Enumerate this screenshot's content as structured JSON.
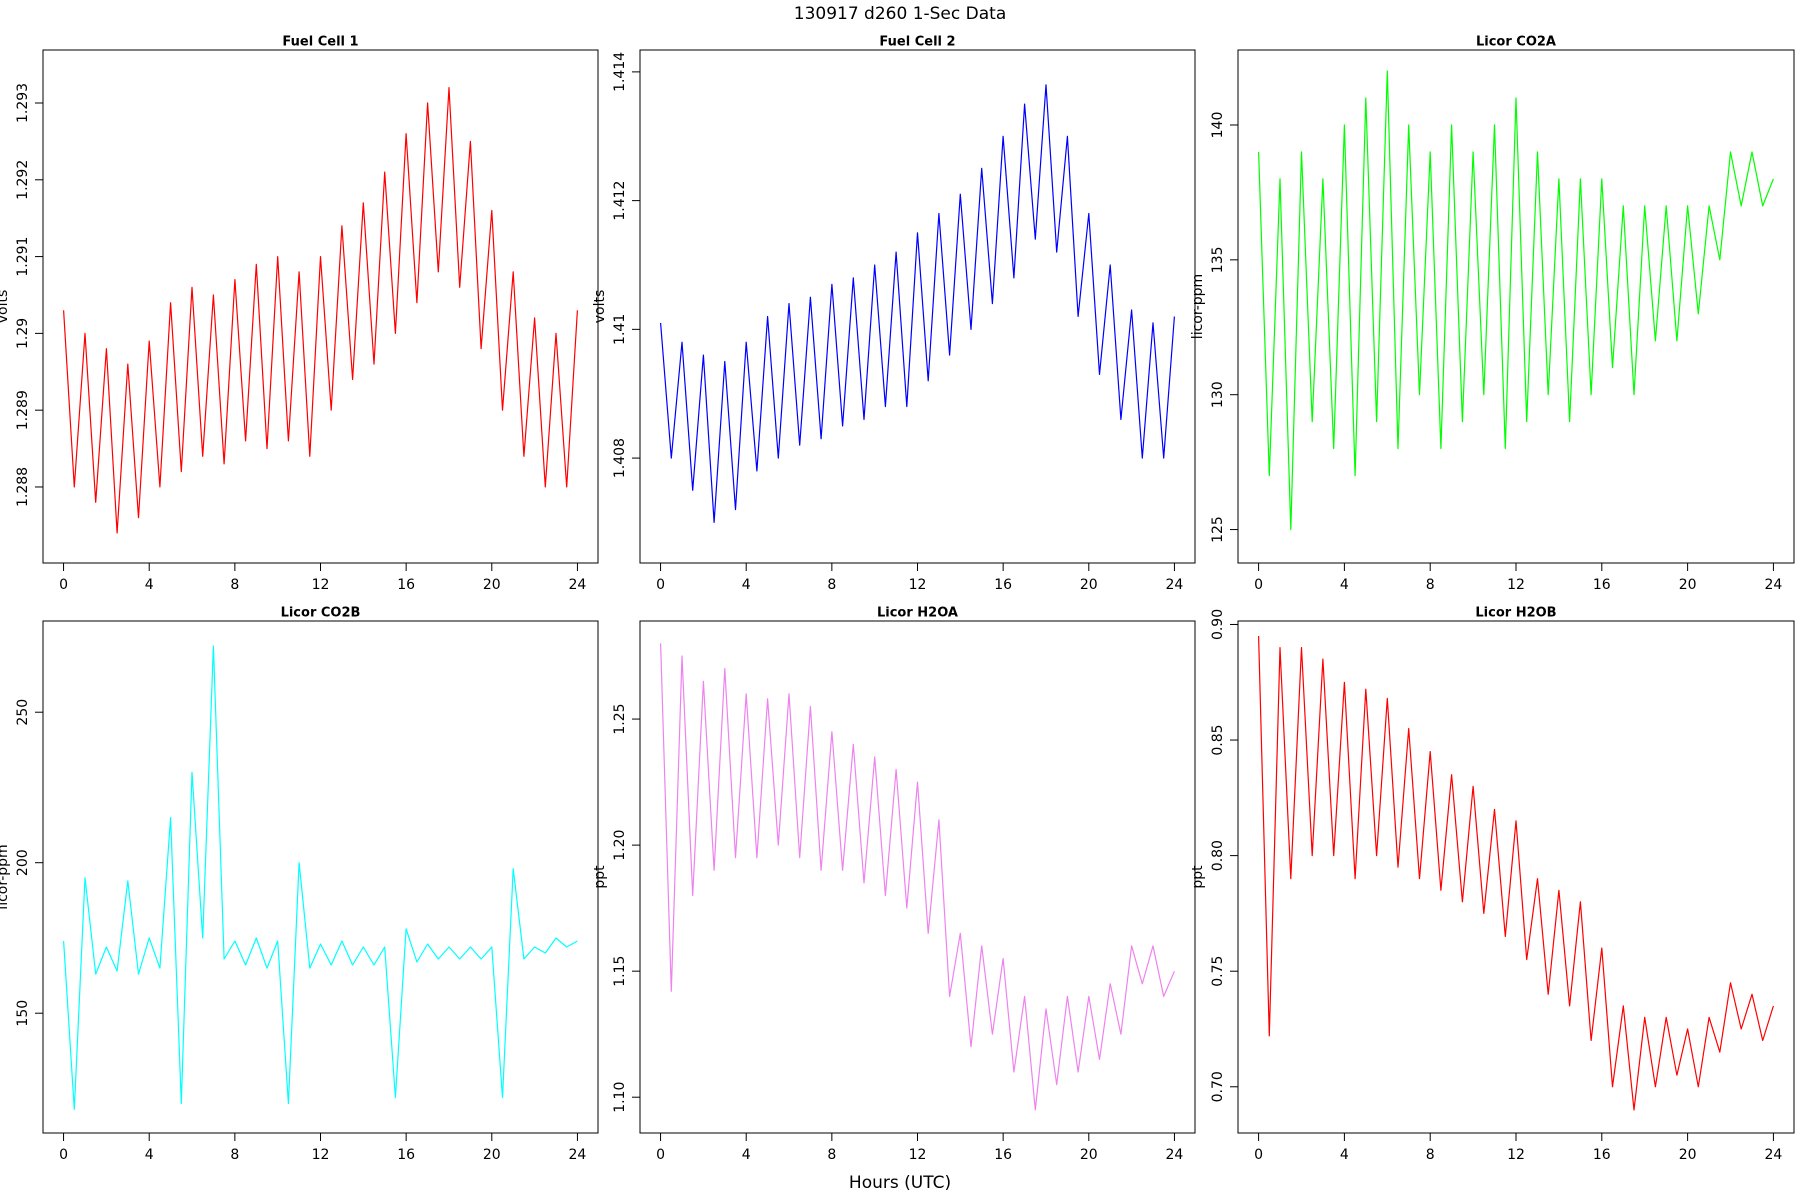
{
  "title": "130917   d260   1-Sec Data",
  "xlabel": "Hours (UTC)",
  "chart_data": [
    {
      "type": "line",
      "title": "Fuel Cell 1",
      "ylabel": "volts",
      "color": "#ff0000",
      "x": [
        0,
        0.5,
        1,
        1.5,
        2,
        2.5,
        3,
        3.5,
        4,
        4.5,
        5,
        5.5,
        6,
        6.5,
        7,
        7.5,
        8,
        8.5,
        9,
        9.5,
        10,
        10.5,
        11,
        11.5,
        12,
        12.5,
        13,
        13.5,
        14,
        14.5,
        15,
        15.5,
        16,
        16.5,
        17,
        17.5,
        18,
        18.5,
        19,
        19.5,
        20,
        20.5,
        21,
        21.5,
        22,
        22.5,
        23,
        23.5,
        24
      ],
      "values": [
        1.2903,
        1.288,
        1.29,
        1.2878,
        1.2898,
        1.2874,
        1.2896,
        1.2876,
        1.2899,
        1.288,
        1.2904,
        1.2882,
        1.2906,
        1.2884,
        1.2905,
        1.2883,
        1.2907,
        1.2886,
        1.2909,
        1.2885,
        1.291,
        1.2886,
        1.2908,
        1.2884,
        1.291,
        1.289,
        1.2914,
        1.2894,
        1.2917,
        1.2896,
        1.2921,
        1.29,
        1.2926,
        1.2904,
        1.293,
        1.2908,
        1.2932,
        1.2906,
        1.2925,
        1.2898,
        1.2916,
        1.289,
        1.2908,
        1.2884,
        1.2902,
        1.288,
        1.29,
        1.288,
        1.2903
      ],
      "xlim": [
        -0.96,
        24.96
      ],
      "xticks": [
        0,
        4,
        8,
        12,
        16,
        20,
        24
      ],
      "ylim": [
        1.28701,
        1.29369
      ],
      "yticks": [
        1.288,
        1.289,
        1.29,
        1.291,
        1.292,
        1.293
      ]
    },
    {
      "type": "line",
      "title": "Fuel Cell 2",
      "ylabel": "volts",
      "color": "#0000ff",
      "x": [
        0,
        0.5,
        1,
        1.5,
        2,
        2.5,
        3,
        3.5,
        4,
        4.5,
        5,
        5.5,
        6,
        6.5,
        7,
        7.5,
        8,
        8.5,
        9,
        9.5,
        10,
        10.5,
        11,
        11.5,
        12,
        12.5,
        13,
        13.5,
        14,
        14.5,
        15,
        15.5,
        16,
        16.5,
        17,
        17.5,
        18,
        18.5,
        19,
        19.5,
        20,
        20.5,
        21,
        21.5,
        22,
        22.5,
        23,
        23.5,
        24
      ],
      "values": [
        1.4101,
        1.408,
        1.4098,
        1.4075,
        1.4096,
        1.407,
        1.4095,
        1.4072,
        1.4098,
        1.4078,
        1.4102,
        1.408,
        1.4104,
        1.4082,
        1.4105,
        1.4083,
        1.4107,
        1.4085,
        1.4108,
        1.4086,
        1.411,
        1.4088,
        1.4112,
        1.4088,
        1.4115,
        1.4092,
        1.4118,
        1.4096,
        1.4121,
        1.41,
        1.4125,
        1.4104,
        1.413,
        1.4108,
        1.4135,
        1.4114,
        1.4138,
        1.4112,
        1.413,
        1.4102,
        1.4118,
        1.4093,
        1.411,
        1.4086,
        1.4103,
        1.408,
        1.4101,
        1.408,
        1.4102
      ],
      "xlim": [
        -0.96,
        24.96
      ],
      "xticks": [
        0,
        4,
        8,
        12,
        16,
        20,
        24
      ],
      "ylim": [
        1.40637,
        1.41434
      ],
      "yticks": [
        1.408,
        1.41,
        1.412,
        1.414
      ]
    },
    {
      "type": "line",
      "title": "Licor CO2A",
      "ylabel": "licor-ppm",
      "color": "#00ff00",
      "x": [
        0,
        0.5,
        1,
        1.5,
        2,
        2.5,
        3,
        3.5,
        4,
        4.5,
        5,
        5.5,
        6,
        6.5,
        7,
        7.5,
        8,
        8.5,
        9,
        9.5,
        10,
        10.5,
        11,
        11.5,
        12,
        12.5,
        13,
        13.5,
        14,
        14.5,
        15,
        15.5,
        16,
        16.5,
        17,
        17.5,
        18,
        18.5,
        19,
        19.5,
        20,
        20.5,
        21,
        21.5,
        22,
        22.5,
        23,
        23.5,
        24
      ],
      "values": [
        139,
        127,
        138,
        125,
        139,
        129,
        138,
        128,
        140,
        127,
        141,
        129,
        142,
        128,
        140,
        130,
        139,
        128,
        140,
        129,
        139,
        130,
        140,
        128,
        141,
        129,
        139,
        130,
        138,
        129,
        138,
        130,
        138,
        131,
        137,
        130,
        137,
        132,
        137,
        132,
        137,
        133,
        137,
        135,
        139,
        137,
        139,
        137,
        138
      ],
      "xlim": [
        -0.96,
        24.96
      ],
      "xticks": [
        0,
        4,
        8,
        12,
        16,
        20,
        24
      ],
      "ylim": [
        123.76,
        142.78
      ],
      "yticks": [
        125,
        130,
        135,
        140
      ]
    },
    {
      "type": "line",
      "title": "Licor CO2B",
      "ylabel": "licor-ppm",
      "color": "#00ffff",
      "x": [
        0,
        0.5,
        1,
        1.5,
        2,
        2.5,
        3,
        3.5,
        4,
        4.5,
        5,
        5.5,
        6,
        6.5,
        7,
        7.5,
        8,
        8.5,
        9,
        9.5,
        10,
        10.5,
        11,
        11.5,
        12,
        12.5,
        13,
        13.5,
        14,
        14.5,
        15,
        15.5,
        16,
        16.5,
        17,
        17.5,
        18,
        18.5,
        19,
        19.5,
        20,
        20.5,
        21,
        21.5,
        22,
        22.5,
        23,
        23.5,
        24
      ],
      "values": [
        174,
        118,
        195,
        163,
        172,
        164,
        194,
        163,
        175,
        165,
        215,
        120,
        230,
        175,
        272,
        168,
        174,
        166,
        175,
        165,
        174,
        120,
        200,
        165,
        173,
        166,
        174,
        166,
        172,
        166,
        172,
        122,
        178,
        167,
        173,
        168,
        172,
        168,
        172,
        168,
        172,
        122,
        198,
        168,
        172,
        170,
        175,
        172,
        174
      ],
      "xlim": [
        -0.96,
        24.96
      ],
      "xticks": [
        0,
        4,
        8,
        12,
        16,
        20,
        24
      ],
      "ylim": [
        110.2,
        280.3
      ],
      "yticks": [
        150,
        200,
        250
      ]
    },
    {
      "type": "line",
      "title": "Licor H2OA",
      "ylabel": "ppt",
      "color": "#ee82ee",
      "x": [
        0,
        0.5,
        1,
        1.5,
        2,
        2.5,
        3,
        3.5,
        4,
        4.5,
        5,
        5.5,
        6,
        6.5,
        7,
        7.5,
        8,
        8.5,
        9,
        9.5,
        10,
        10.5,
        11,
        11.5,
        12,
        12.5,
        13,
        13.5,
        14,
        14.5,
        15,
        15.5,
        16,
        16.5,
        17,
        17.5,
        18,
        18.5,
        19,
        19.5,
        20,
        20.5,
        21,
        21.5,
        22,
        22.5,
        23,
        23.5,
        24
      ],
      "values": [
        1.28,
        1.142,
        1.275,
        1.18,
        1.265,
        1.19,
        1.27,
        1.195,
        1.26,
        1.195,
        1.258,
        1.2,
        1.26,
        1.195,
        1.255,
        1.19,
        1.245,
        1.19,
        1.24,
        1.185,
        1.235,
        1.18,
        1.23,
        1.175,
        1.225,
        1.165,
        1.21,
        1.14,
        1.165,
        1.12,
        1.16,
        1.125,
        1.155,
        1.11,
        1.14,
        1.095,
        1.135,
        1.105,
        1.14,
        1.11,
        1.14,
        1.115,
        1.145,
        1.125,
        1.16,
        1.145,
        1.16,
        1.14,
        1.15
      ],
      "xlim": [
        -0.96,
        24.96
      ],
      "xticks": [
        0,
        4,
        8,
        12,
        16,
        20,
        24
      ],
      "ylim": [
        1.0858,
        1.2889
      ],
      "yticks": [
        {
          "value": 1.1,
          "label": "1.10"
        },
        1.15,
        {
          "value": 1.2,
          "label": "1.20"
        },
        1.25
      ]
    },
    {
      "type": "line",
      "title": "Licor H2OB",
      "ylabel": "ppt",
      "color": "#ff0000",
      "x": [
        0,
        0.5,
        1,
        1.5,
        2,
        2.5,
        3,
        3.5,
        4,
        4.5,
        5,
        5.5,
        6,
        6.5,
        7,
        7.5,
        8,
        8.5,
        9,
        9.5,
        10,
        10.5,
        11,
        11.5,
        12,
        12.5,
        13,
        13.5,
        14,
        14.5,
        15,
        15.5,
        16,
        16.5,
        17,
        17.5,
        18,
        18.5,
        19,
        19.5,
        20,
        20.5,
        21,
        21.5,
        22,
        22.5,
        23,
        23.5,
        24
      ],
      "values": [
        0.895,
        0.722,
        0.89,
        0.79,
        0.89,
        0.8,
        0.885,
        0.8,
        0.875,
        0.79,
        0.872,
        0.8,
        0.868,
        0.795,
        0.855,
        0.79,
        0.845,
        0.785,
        0.835,
        0.78,
        0.83,
        0.775,
        0.82,
        0.765,
        0.815,
        0.755,
        0.79,
        0.74,
        0.785,
        0.735,
        0.78,
        0.72,
        0.76,
        0.7,
        0.735,
        0.69,
        0.73,
        0.7,
        0.73,
        0.705,
        0.725,
        0.7,
        0.73,
        0.715,
        0.745,
        0.725,
        0.74,
        0.72,
        0.735
      ],
      "xlim": [
        -0.96,
        24.96
      ],
      "xticks": [
        0,
        4,
        8,
        12,
        16,
        20,
        24
      ],
      "ylim": [
        0.68,
        0.9015
      ],
      "yticks": [
        {
          "value": 0.7,
          "label": "0.70"
        },
        0.75,
        {
          "value": 0.8,
          "label": "0.80"
        },
        0.85,
        {
          "value": 0.9,
          "label": "0.90"
        }
      ]
    }
  ]
}
